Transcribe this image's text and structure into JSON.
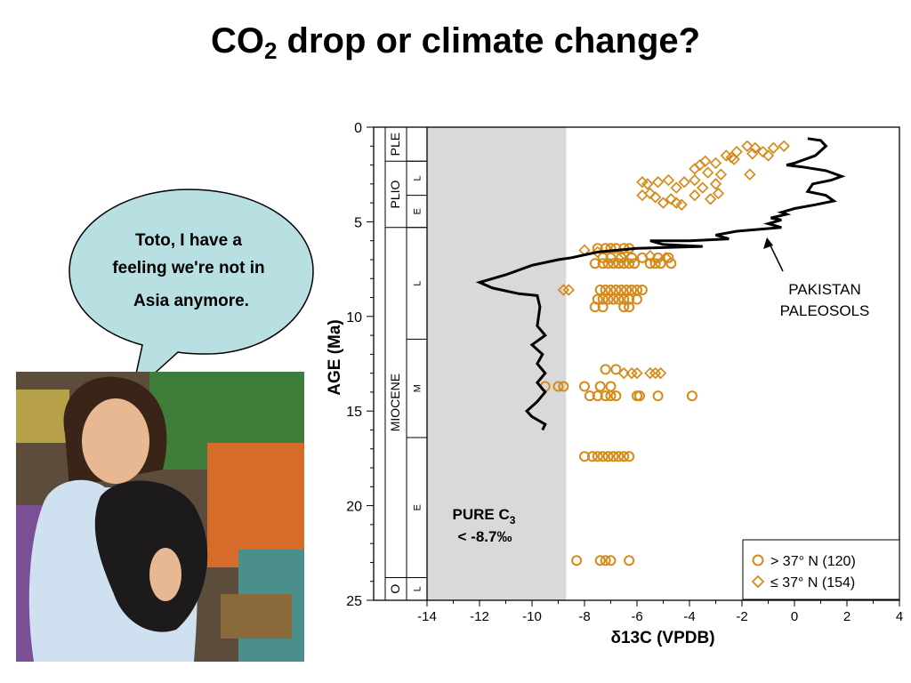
{
  "slide": {
    "title_main": "CO",
    "title_sub": "2",
    "title_rest": " drop or climate change?"
  },
  "bubble": {
    "line1": "Toto, I have a",
    "line2": "feeling we're not in",
    "line3": "Asia anymore."
  },
  "colors": {
    "bubble_fill": "#b8dfe1",
    "marker_orange": "#d68a1a",
    "c3_band": "#d9d9d9",
    "line": "#000000"
  },
  "chart_data": {
    "type": "scatter",
    "xlabel": "δ13C (VPDB)",
    "ylabel": "AGE (Ma)",
    "xlim": [
      -14,
      4
    ],
    "ylim": [
      25,
      0
    ],
    "y_inverted": true,
    "x_ticks": [
      "-14",
      "-12",
      "-10",
      "-8",
      "-6",
      "-4",
      "-2",
      "0",
      "2",
      "4"
    ],
    "y_ticks": [
      "0",
      "5",
      "10",
      "15",
      "20",
      "25"
    ],
    "c3_band": {
      "x_from": -14,
      "x_to": -8.7,
      "label_line1": "PURE  C",
      "label_sub": "3",
      "label_line2": "< -8.7‰"
    },
    "geologic_column": {
      "epochs": [
        {
          "name": "PLE",
          "from": 0,
          "to": 1.8
        },
        {
          "name": "PLIO",
          "from": 1.8,
          "to": 5.3
        },
        {
          "name": "MIOCENE",
          "from": 5.3,
          "to": 23.8
        },
        {
          "name": "O",
          "from": 23.8,
          "to": 25
        }
      ],
      "stages": [
        {
          "name": "L",
          "from": 1.8,
          "to": 3.6
        },
        {
          "name": "E",
          "from": 3.6,
          "to": 5.3
        },
        {
          "name": "L",
          "from": 5.3,
          "to": 11.2
        },
        {
          "name": "M",
          "from": 11.2,
          "to": 16.4
        },
        {
          "name": "E",
          "from": 16.4,
          "to": 23.8
        },
        {
          "name": "L",
          "from": 23.8,
          "to": 25
        }
      ]
    },
    "annotation": {
      "line1": "PAKISTAN",
      "line2": "PALEOSOLS"
    },
    "legend": {
      "position": "bottom-right",
      "entries": [
        {
          "marker": "circle",
          "label": "> 37° N  (120)"
        },
        {
          "marker": "diamond",
          "label": "≤ 37° N  (154)"
        }
      ]
    },
    "paleosol_line": [
      [
        0.5,
        0.6
      ],
      [
        1.0,
        0.7
      ],
      [
        1.2,
        1.0
      ],
      [
        0.8,
        1.5
      ],
      [
        0,
        1.9
      ],
      [
        -0.3,
        2.0
      ],
      [
        0.3,
        2.1
      ],
      [
        1.2,
        2.3
      ],
      [
        1.8,
        2.6
      ],
      [
        1.4,
        2.8
      ],
      [
        0.7,
        3.0
      ],
      [
        0.5,
        3.4
      ],
      [
        1.2,
        3.6
      ],
      [
        1.5,
        3.9
      ],
      [
        0.8,
        4.1
      ],
      [
        0,
        4.3
      ],
      [
        -0.5,
        4.5
      ],
      [
        -0.3,
        4.6
      ],
      [
        -0.9,
        4.8
      ],
      [
        -0.5,
        4.9
      ],
      [
        -1.0,
        5.1
      ],
      [
        -0.5,
        5.3
      ],
      [
        -2.2,
        5.5
      ],
      [
        -3.0,
        5.7
      ],
      [
        -2.5,
        5.9
      ],
      [
        -4.0,
        6.0
      ],
      [
        -5.5,
        6.0
      ],
      [
        -5.0,
        6.2
      ],
      [
        -3.5,
        6.3
      ],
      [
        -6.0,
        6.4
      ],
      [
        -7.5,
        6.6
      ],
      [
        -8.5,
        6.9
      ],
      [
        -9.0,
        7.0
      ],
      [
        -10.0,
        7.3
      ],
      [
        -11.0,
        7.8
      ],
      [
        -12.0,
        8.2
      ],
      [
        -11.5,
        8.5
      ],
      [
        -10.5,
        8.8
      ],
      [
        -9.8,
        8.9
      ],
      [
        -9.7,
        9.5
      ],
      [
        -9.8,
        10.5
      ],
      [
        -9.5,
        11.0
      ],
      [
        -10.0,
        11.5
      ],
      [
        -9.6,
        12.0
      ],
      [
        -9.8,
        12.5
      ],
      [
        -9.5,
        13.0
      ],
      [
        -9.8,
        13.5
      ],
      [
        -9.5,
        14.0
      ],
      [
        -9.8,
        14.5
      ],
      [
        -10.2,
        15.0
      ],
      [
        -10.0,
        15.3
      ],
      [
        -9.5,
        15.7
      ],
      [
        -9.6,
        16.0
      ]
    ],
    "series": [
      {
        "name": "> 37° N  (120)",
        "marker": "circle",
        "points": [
          [
            -7.5,
            6.4
          ],
          [
            -7.2,
            6.4
          ],
          [
            -7.0,
            6.4
          ],
          [
            -6.8,
            6.4
          ],
          [
            -6.5,
            6.4
          ],
          [
            -6.3,
            6.4
          ],
          [
            -7.3,
            6.9
          ],
          [
            -7.0,
            6.9
          ],
          [
            -6.6,
            6.9
          ],
          [
            -6.2,
            6.9
          ],
          [
            -5.8,
            6.9
          ],
          [
            -5.2,
            6.9
          ],
          [
            -4.8,
            6.9
          ],
          [
            -7.6,
            7.2
          ],
          [
            -7.3,
            7.2
          ],
          [
            -7.1,
            7.2
          ],
          [
            -6.9,
            7.2
          ],
          [
            -6.7,
            7.2
          ],
          [
            -6.5,
            7.2
          ],
          [
            -6.3,
            7.2
          ],
          [
            -6.1,
            7.2
          ],
          [
            -5.5,
            7.2
          ],
          [
            -5.3,
            7.2
          ],
          [
            -5.1,
            7.2
          ],
          [
            -4.7,
            7.2
          ],
          [
            -7.4,
            8.6
          ],
          [
            -7.2,
            8.6
          ],
          [
            -7.0,
            8.6
          ],
          [
            -6.8,
            8.6
          ],
          [
            -6.6,
            8.6
          ],
          [
            -6.4,
            8.6
          ],
          [
            -6.2,
            8.6
          ],
          [
            -6.0,
            8.6
          ],
          [
            -5.8,
            8.6
          ],
          [
            -7.5,
            9.1
          ],
          [
            -7.3,
            9.1
          ],
          [
            -7.1,
            9.1
          ],
          [
            -6.9,
            9.1
          ],
          [
            -6.7,
            9.1
          ],
          [
            -6.5,
            9.1
          ],
          [
            -6.3,
            9.1
          ],
          [
            -6.0,
            9.1
          ],
          [
            -7.6,
            9.5
          ],
          [
            -7.3,
            9.5
          ],
          [
            -6.5,
            9.5
          ],
          [
            -6.3,
            9.5
          ],
          [
            -7.2,
            12.8
          ],
          [
            -6.8,
            12.8
          ],
          [
            -9.5,
            13.7
          ],
          [
            -9.0,
            13.7
          ],
          [
            -8.8,
            13.7
          ],
          [
            -8.0,
            13.7
          ],
          [
            -7.4,
            13.7
          ],
          [
            -7.0,
            13.7
          ],
          [
            -7.8,
            14.2
          ],
          [
            -7.5,
            14.2
          ],
          [
            -7.2,
            14.2
          ],
          [
            -7.0,
            14.2
          ],
          [
            -6.8,
            14.2
          ],
          [
            -6.0,
            14.2
          ],
          [
            -5.9,
            14.2
          ],
          [
            -5.2,
            14.2
          ],
          [
            -3.9,
            14.2
          ],
          [
            -8.0,
            17.4
          ],
          [
            -7.7,
            17.4
          ],
          [
            -7.5,
            17.4
          ],
          [
            -7.3,
            17.4
          ],
          [
            -7.1,
            17.4
          ],
          [
            -6.9,
            17.4
          ],
          [
            -6.7,
            17.4
          ],
          [
            -6.5,
            17.4
          ],
          [
            -6.3,
            17.4
          ],
          [
            -8.3,
            22.9
          ],
          [
            -7.4,
            22.9
          ],
          [
            -7.2,
            22.9
          ],
          [
            -7.0,
            22.9
          ],
          [
            -6.3,
            22.9
          ]
        ]
      },
      {
        "name": "≤ 37° N  (154)",
        "marker": "diamond",
        "points": [
          [
            -1.8,
            1.0
          ],
          [
            -1.5,
            1.1
          ],
          [
            -1.2,
            1.3
          ],
          [
            -0.8,
            1.1
          ],
          [
            -0.4,
            1.0
          ],
          [
            -1.0,
            1.5
          ],
          [
            -1.6,
            1.4
          ],
          [
            -2.2,
            1.3
          ],
          [
            -2.6,
            1.5
          ],
          [
            -2.3,
            1.7
          ],
          [
            -3.0,
            1.9
          ],
          [
            -3.4,
            1.8
          ],
          [
            -3.6,
            2.0
          ],
          [
            -3.8,
            2.2
          ],
          [
            -3.3,
            2.4
          ],
          [
            -2.8,
            2.5
          ],
          [
            -1.7,
            2.5
          ],
          [
            -2.4,
            1.6
          ],
          [
            -5.8,
            2.9
          ],
          [
            -5.6,
            3.0
          ],
          [
            -5.2,
            2.9
          ],
          [
            -4.8,
            2.8
          ],
          [
            -4.2,
            2.9
          ],
          [
            -3.8,
            2.8
          ],
          [
            -3.5,
            3.2
          ],
          [
            -3.0,
            3.0
          ],
          [
            -4.5,
            3.2
          ],
          [
            -5.5,
            3.5
          ],
          [
            -5.8,
            3.6
          ],
          [
            -5.3,
            3.7
          ],
          [
            -4.7,
            3.8
          ],
          [
            -4.5,
            4.0
          ],
          [
            -3.8,
            3.6
          ],
          [
            -3.2,
            3.8
          ],
          [
            -2.9,
            3.5
          ],
          [
            -4.3,
            4.1
          ],
          [
            -5.0,
            4.0
          ],
          [
            -8.0,
            6.5
          ],
          [
            -7.5,
            6.6
          ],
          [
            -6.5,
            6.7
          ],
          [
            -5.5,
            6.8
          ],
          [
            -4.9,
            6.9
          ],
          [
            -8.8,
            8.6
          ],
          [
            -8.6,
            8.6
          ],
          [
            -5.5,
            13.0
          ],
          [
            -5.3,
            13.0
          ],
          [
            -5.1,
            13.0
          ],
          [
            -6.5,
            13.0
          ],
          [
            -6.2,
            13.0
          ],
          [
            -6.0,
            13.0
          ]
        ]
      }
    ]
  }
}
